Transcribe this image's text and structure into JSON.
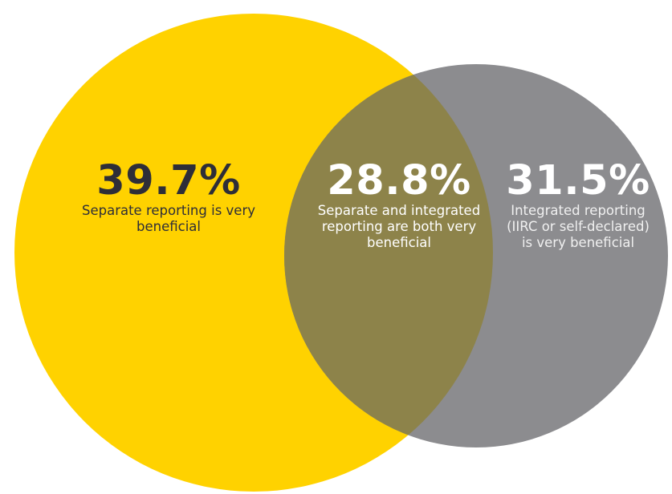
{
  "colors": {
    "left_circle": "#ffd200",
    "right_circle": "#8c8c8f",
    "overlap": "#8d834a",
    "dark_text": "#2e2e38",
    "light_text": "#ffffff"
  },
  "segments": {
    "left": {
      "value": "39.7%",
      "description": "Separate reporting is very beneficial"
    },
    "middle": {
      "value": "28.8%",
      "description": "Separate and integrated reporting are both very beneficial"
    },
    "right": {
      "value": "31.5%",
      "description": "Integrated reporting (IIRC or self-declared) is very beneficial"
    }
  }
}
